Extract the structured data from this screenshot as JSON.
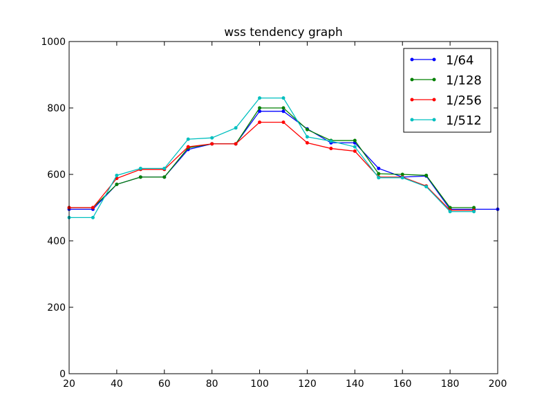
{
  "chart_data": {
    "type": "line",
    "title": "wss tendency graph",
    "xlabel": "",
    "ylabel": "",
    "xlim": [
      20,
      200
    ],
    "ylim": [
      0,
      1000
    ],
    "xticks": [
      20,
      40,
      60,
      80,
      100,
      120,
      140,
      160,
      180,
      200
    ],
    "yticks": [
      0,
      200,
      400,
      600,
      800,
      1000
    ],
    "grid": false,
    "legend_position": "top-right",
    "series": [
      {
        "name": "1/64",
        "color": "#0000ff",
        "x": [
          20,
          30,
          40,
          50,
          60,
          70,
          80,
          90,
          100,
          110,
          120,
          130,
          140,
          150,
          160,
          170,
          180,
          190,
          200
        ],
        "y": [
          495,
          495,
          570,
          592,
          592,
          675,
          692,
          692,
          790,
          790,
          737,
          695,
          695,
          618,
          592,
          595,
          495,
          495,
          495
        ]
      },
      {
        "name": "1/128",
        "color": "#008000",
        "x": [
          20,
          30,
          40,
          50,
          60,
          70,
          80,
          90,
          100,
          110,
          120,
          130,
          140,
          150,
          160,
          170,
          180,
          190
        ],
        "y": [
          500,
          500,
          570,
          592,
          592,
          680,
          692,
          692,
          800,
          800,
          735,
          702,
          702,
          602,
          600,
          597,
          500,
          500
        ]
      },
      {
        "name": "1/256",
        "color": "#ff0000",
        "x": [
          20,
          30,
          40,
          50,
          60,
          70,
          80,
          90,
          100,
          110,
          120,
          130,
          140,
          150,
          160,
          170,
          180,
          190
        ],
        "y": [
          500,
          500,
          588,
          615,
          615,
          683,
          692,
          692,
          757,
          757,
          695,
          678,
          670,
          592,
          592,
          565,
          492,
          492
        ]
      },
      {
        "name": "1/512",
        "color": "#00bfbf",
        "x": [
          20,
          30,
          40,
          50,
          60,
          70,
          80,
          90,
          100,
          110,
          120,
          130,
          140,
          150,
          160,
          170,
          180,
          190
        ],
        "y": [
          470,
          470,
          597,
          618,
          618,
          706,
          710,
          740,
          830,
          830,
          713,
          700,
          683,
          590,
          590,
          563,
          488,
          488
        ]
      }
    ]
  }
}
